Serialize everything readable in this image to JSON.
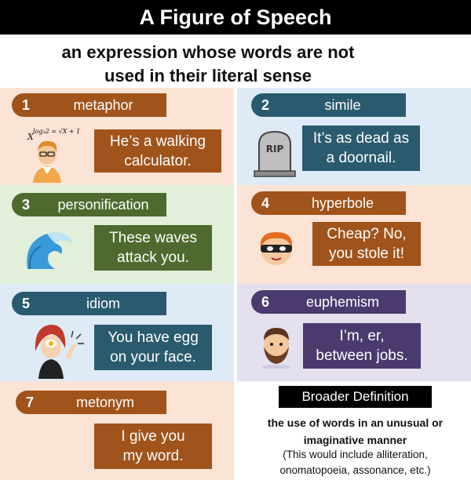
{
  "header": {
    "title": "A Figure of Speech",
    "subtitle": "an expression whose words are not\nused in their literal sense"
  },
  "figures": [
    {
      "number": "1",
      "term": "metaphor",
      "example": "He’s a walking\ncalculator.",
      "illustration": "student-with-math-formula-icon"
    },
    {
      "number": "2",
      "term": "simile",
      "example": "It’s as dead as\na doornail.",
      "illustration": "tombstone-icon",
      "illustration_text": "RIP"
    },
    {
      "number": "3",
      "term": "personification",
      "example": "These waves\nattack you.",
      "illustration": "ocean-wave-icon"
    },
    {
      "number": "4",
      "term": "hyperbole",
      "example": "Cheap? No,\nyou stole it!",
      "illustration": "masked-thief-icon"
    },
    {
      "number": "5",
      "term": "idiom",
      "example": "You have egg\non your face.",
      "illustration": "woman-with-egg-icon"
    },
    {
      "number": "6",
      "term": "euphemism",
      "example": "I’m, er,\nbetween jobs.",
      "illustration": "bearded-man-icon"
    },
    {
      "number": "7",
      "term": "metonym",
      "example": "I give you\nmy word.",
      "illustration": ""
    }
  ],
  "math_formula": "log₃2 = √X + 1",
  "math_var": "X",
  "broader": {
    "title": "Broader Definition",
    "definition": "the use of words in an unusual or\nimaginative manner",
    "note": "(This would include alliteration,\nonomatopoeia, assonance, etc.)"
  },
  "colors": {
    "orange_brown": "#a0531b",
    "teal_dark": "#2a5a6e",
    "green_dark": "#4e6a2e",
    "purple_dark": "#4a3a6e",
    "peach_bg": "#fbe4d5",
    "lightblue_bg": "#deebf7",
    "lightgreen_bg": "#e2efda",
    "lavender_bg": "#e4e0ee"
  }
}
